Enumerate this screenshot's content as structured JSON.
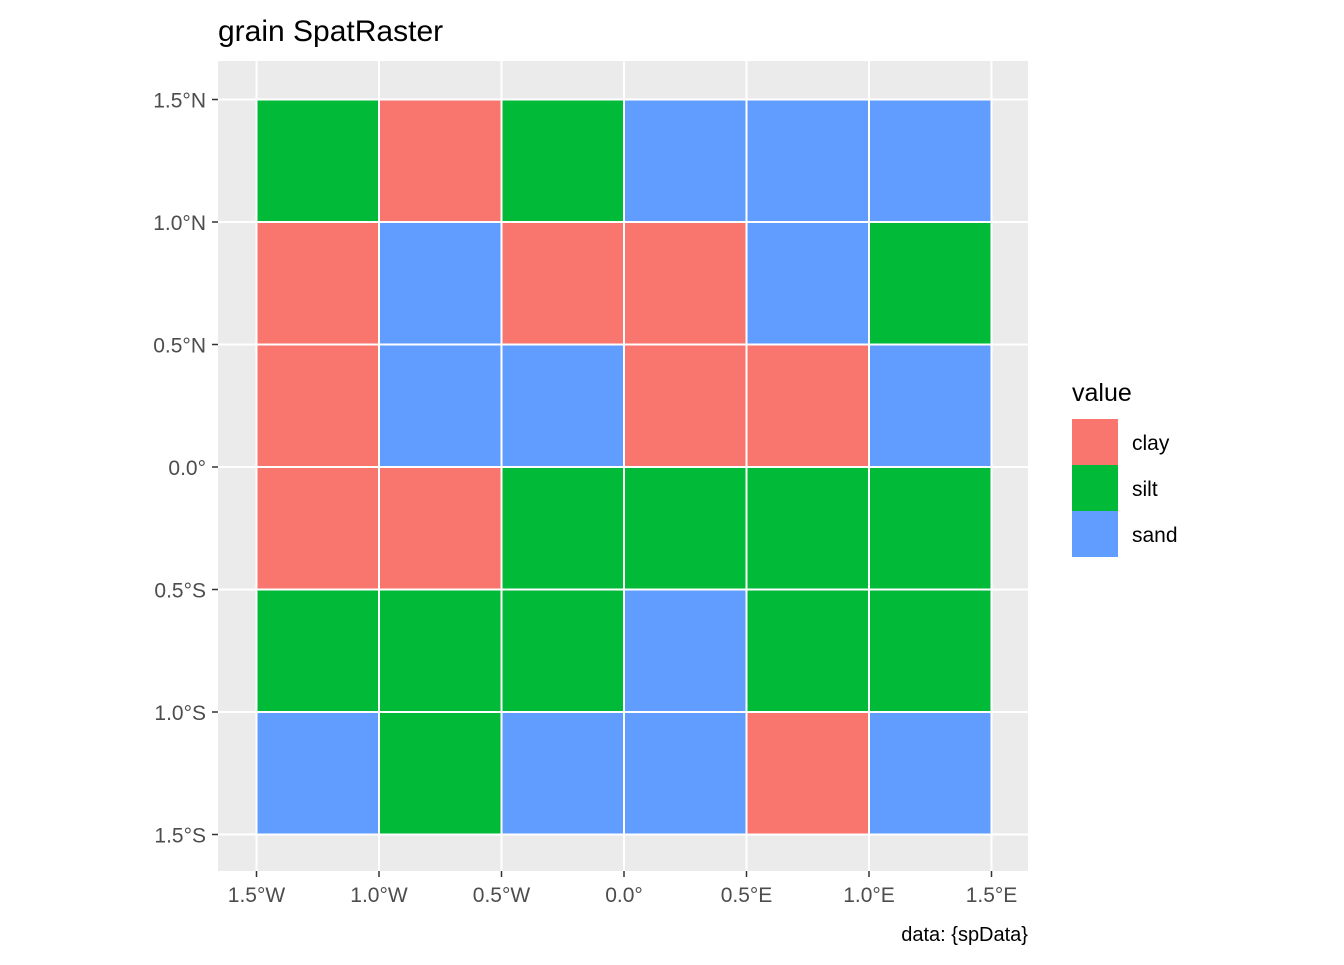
{
  "chart_data": {
    "type": "heatmap",
    "title": "grain SpatRaster",
    "caption": "data: {spData}",
    "xlabel": "",
    "ylabel": "",
    "xlim": [
      -1.5,
      1.5
    ],
    "ylim": [
      -1.5,
      1.5
    ],
    "x_ticks": [
      {
        "value": -1.5,
        "label": "1.5°W"
      },
      {
        "value": -1.0,
        "label": "1.0°W"
      },
      {
        "value": -0.5,
        "label": "0.5°W"
      },
      {
        "value": 0.0,
        "label": "0.0°"
      },
      {
        "value": 0.5,
        "label": "0.5°E"
      },
      {
        "value": 1.0,
        "label": "1.0°E"
      },
      {
        "value": 1.5,
        "label": "1.5°E"
      }
    ],
    "y_ticks": [
      {
        "value": 1.5,
        "label": "1.5°N"
      },
      {
        "value": 1.0,
        "label": "1.0°N"
      },
      {
        "value": 0.5,
        "label": "0.5°N"
      },
      {
        "value": 0.0,
        "label": "0.0°"
      },
      {
        "value": -0.5,
        "label": "0.5°S"
      },
      {
        "value": -1.0,
        "label": "1.0°S"
      },
      {
        "value": -1.5,
        "label": "1.5°S"
      }
    ],
    "grid": true,
    "legend": {
      "title": "value",
      "position": "right",
      "entries": [
        {
          "label": "clay",
          "color": "#F8766D"
        },
        {
          "label": "silt",
          "color": "#00BA38"
        },
        {
          "label": "sand",
          "color": "#619CFF"
        }
      ]
    },
    "cell_size": 0.5,
    "cells": [
      [
        "silt",
        "clay",
        "silt",
        "sand",
        "sand",
        "sand"
      ],
      [
        "clay",
        "sand",
        "clay",
        "clay",
        "sand",
        "silt"
      ],
      [
        "clay",
        "sand",
        "sand",
        "clay",
        "clay",
        "sand"
      ],
      [
        "clay",
        "clay",
        "silt",
        "silt",
        "silt",
        "silt"
      ],
      [
        "silt",
        "silt",
        "silt",
        "sand",
        "silt",
        "silt"
      ],
      [
        "sand",
        "silt",
        "sand",
        "sand",
        "clay",
        "sand"
      ]
    ],
    "colors": {
      "panel_background": "#EBEBEB",
      "grid_line": "#FFFFFF",
      "tick_text": "#4D4D4D",
      "title_text": "#000000"
    }
  }
}
